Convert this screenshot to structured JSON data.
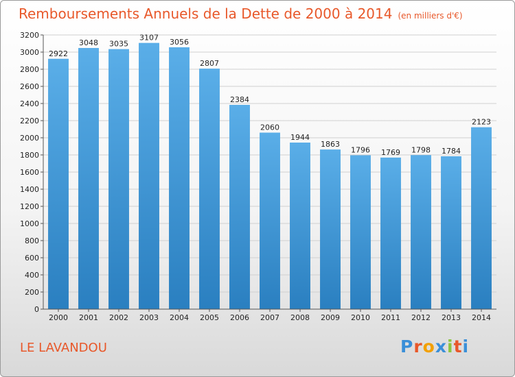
{
  "title": "Remboursements Annuels de la Dette de 2000 à 2014",
  "subtitle": "(en milliers d'€)",
  "city": "LE LAVANDOU",
  "logo": "Proxiti",
  "colors": {
    "title": "#e8582a",
    "bar_top": "#5aaee8",
    "bar_bottom": "#2a7fc0",
    "logo_letters": [
      "#3a8fd8",
      "#e8582a",
      "#f2a000",
      "#3a8fd8",
      "#8cc63f",
      "#e8582a",
      "#3a8fd8"
    ]
  },
  "chart_data": {
    "type": "bar",
    "categories": [
      "2000",
      "2001",
      "2002",
      "2003",
      "2004",
      "2005",
      "2006",
      "2007",
      "2008",
      "2009",
      "2010",
      "2011",
      "2012",
      "2013",
      "2014"
    ],
    "values": [
      2922,
      3048,
      3035,
      3107,
      3056,
      2807,
      2384,
      2060,
      1944,
      1863,
      1796,
      1769,
      1798,
      1784,
      2123
    ],
    "ylim": [
      0,
      3200
    ],
    "ytick_step": 200,
    "grid": true,
    "data_labels": true
  }
}
